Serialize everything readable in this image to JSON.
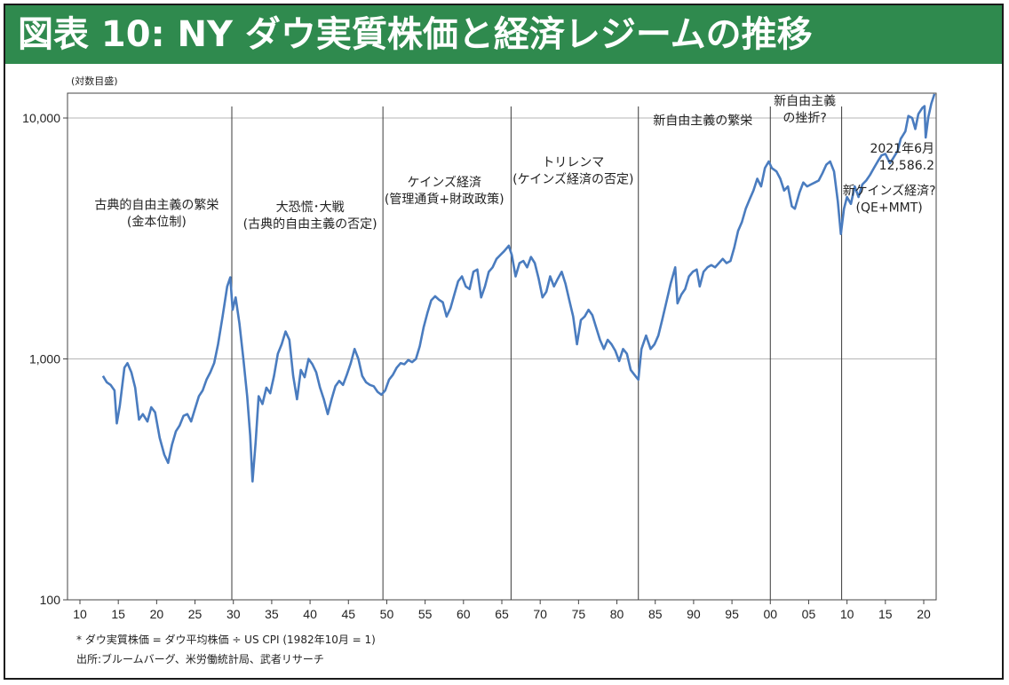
{
  "title": "図表 10: NY ダウ実質株価と経済レジームの推移",
  "unit_label": "(対数目盛)",
  "notes": [
    "*  ダウ実質株価 = ダウ平均株価 ÷ US CPI (1982年10月 = 1)",
    "出所:ブルームバーグ、米労働統計局、武者リサーチ"
  ],
  "chart_data": {
    "type": "line",
    "title": "図表 10: NY ダウ実質株価と経済レジームの推移",
    "ylabel": "(対数目盛)",
    "xlabel": "",
    "y_scale": "log",
    "ylim": [
      100,
      13000
    ],
    "xlim": [
      1910,
      2022
    ],
    "yticks": [
      100,
      1000,
      10000
    ],
    "ytick_labels": [
      "100",
      "1,000",
      "10,000"
    ],
    "xticks": [
      1910,
      1915,
      1920,
      1925,
      1930,
      1935,
      1940,
      1945,
      1950,
      1955,
      1960,
      1965,
      1970,
      1975,
      1980,
      1985,
      1990,
      1995,
      2000,
      2005,
      2010,
      2015,
      2020
    ],
    "xtick_labels": [
      "10",
      "15",
      "20",
      "25",
      "30",
      "35",
      "40",
      "45",
      "50",
      "55",
      "60",
      "65",
      "70",
      "75",
      "80",
      "85",
      "90",
      "95",
      "00",
      "05",
      "10",
      "15",
      "20"
    ],
    "horizontal_gridlines": [
      1000,
      10000
    ],
    "line_color": "#4a7cbf",
    "regime_dividers": [
      1929.8,
      1949.5,
      1966.2,
      1982.8,
      2000.0,
      2009.3
    ],
    "regimes": [
      {
        "x": 1920.0,
        "y": 4200,
        "lines": [
          "古典的自由主義の繁栄",
          "(金本位制)"
        ]
      },
      {
        "x": 1940.0,
        "y": 4100,
        "lines": [
          "大恐慌･大戦",
          "(古典的自由主義の否定)"
        ]
      },
      {
        "x": 1957.5,
        "y": 5200,
        "lines": [
          "ケインズ経済",
          "(管理通貨+財政政策)"
        ]
      },
      {
        "x": 1974.3,
        "y": 6300,
        "lines": [
          "トリレンマ",
          "(ケインズ経済の否定)"
        ]
      },
      {
        "x": 1991.2,
        "y": 9400,
        "lines": [
          "新自由主義の繁栄"
        ]
      },
      {
        "x": 2004.5,
        "y": 11300,
        "lines": [
          "新自由主義",
          "の挫折?"
        ]
      },
      {
        "x": 2015.5,
        "y": 4800,
        "lines": [
          "新ケインズ経済?",
          "(QE+MMT)"
        ]
      }
    ],
    "last_point": {
      "label": [
        "2021年6月",
        "12,586.2"
      ],
      "x": 2021.4,
      "y": 12586.2
    },
    "series": [
      {
        "values": [
          [
            1913.0,
            850
          ],
          [
            1913.5,
            800
          ],
          [
            1914.0,
            780
          ],
          [
            1914.5,
            740
          ],
          [
            1914.8,
            540
          ],
          [
            1915.2,
            640
          ],
          [
            1915.8,
            920
          ],
          [
            1916.2,
            960
          ],
          [
            1916.7,
            880
          ],
          [
            1917.2,
            760
          ],
          [
            1917.7,
            560
          ],
          [
            1918.2,
            590
          ],
          [
            1918.8,
            550
          ],
          [
            1919.3,
            630
          ],
          [
            1919.8,
            600
          ],
          [
            1920.4,
            470
          ],
          [
            1921.0,
            400
          ],
          [
            1921.5,
            370
          ],
          [
            1922.0,
            440
          ],
          [
            1922.5,
            500
          ],
          [
            1923.0,
            530
          ],
          [
            1923.5,
            580
          ],
          [
            1924.0,
            590
          ],
          [
            1924.5,
            550
          ],
          [
            1925.0,
            620
          ],
          [
            1925.5,
            700
          ],
          [
            1926.0,
            740
          ],
          [
            1926.5,
            820
          ],
          [
            1927.0,
            880
          ],
          [
            1927.5,
            960
          ],
          [
            1928.0,
            1150
          ],
          [
            1928.6,
            1500
          ],
          [
            1929.2,
            2000
          ],
          [
            1929.6,
            2180
          ],
          [
            1929.9,
            1600
          ],
          [
            1930.3,
            1800
          ],
          [
            1930.8,
            1400
          ],
          [
            1931.3,
            1000
          ],
          [
            1931.8,
            700
          ],
          [
            1932.2,
            480
          ],
          [
            1932.5,
            310
          ],
          [
            1932.9,
            450
          ],
          [
            1933.3,
            700
          ],
          [
            1933.8,
            650
          ],
          [
            1934.3,
            760
          ],
          [
            1934.8,
            720
          ],
          [
            1935.3,
            850
          ],
          [
            1935.8,
            1050
          ],
          [
            1936.3,
            1150
          ],
          [
            1936.8,
            1300
          ],
          [
            1937.3,
            1200
          ],
          [
            1937.8,
            850
          ],
          [
            1938.3,
            680
          ],
          [
            1938.8,
            900
          ],
          [
            1939.3,
            840
          ],
          [
            1939.8,
            1000
          ],
          [
            1940.3,
            950
          ],
          [
            1940.8,
            880
          ],
          [
            1941.3,
            760
          ],
          [
            1941.8,
            680
          ],
          [
            1942.3,
            590
          ],
          [
            1942.8,
            680
          ],
          [
            1943.3,
            770
          ],
          [
            1943.8,
            810
          ],
          [
            1944.3,
            780
          ],
          [
            1944.8,
            860
          ],
          [
            1945.3,
            960
          ],
          [
            1945.8,
            1100
          ],
          [
            1946.3,
            1000
          ],
          [
            1946.8,
            850
          ],
          [
            1947.3,
            800
          ],
          [
            1947.8,
            780
          ],
          [
            1948.3,
            770
          ],
          [
            1948.8,
            730
          ],
          [
            1949.3,
            710
          ],
          [
            1949.8,
            740
          ],
          [
            1950.3,
            820
          ],
          [
            1950.8,
            860
          ],
          [
            1951.3,
            920
          ],
          [
            1951.8,
            960
          ],
          [
            1952.3,
            950
          ],
          [
            1952.8,
            990
          ],
          [
            1953.3,
            970
          ],
          [
            1953.8,
            1000
          ],
          [
            1954.3,
            1130
          ],
          [
            1954.8,
            1350
          ],
          [
            1955.3,
            1550
          ],
          [
            1955.8,
            1750
          ],
          [
            1956.3,
            1820
          ],
          [
            1956.8,
            1760
          ],
          [
            1957.3,
            1720
          ],
          [
            1957.8,
            1500
          ],
          [
            1958.3,
            1620
          ],
          [
            1958.8,
            1850
          ],
          [
            1959.3,
            2100
          ],
          [
            1959.8,
            2200
          ],
          [
            1960.3,
            2000
          ],
          [
            1960.8,
            1950
          ],
          [
            1961.3,
            2300
          ],
          [
            1961.8,
            2350
          ],
          [
            1962.3,
            1800
          ],
          [
            1962.8,
            2000
          ],
          [
            1963.3,
            2300
          ],
          [
            1963.8,
            2400
          ],
          [
            1964.3,
            2600
          ],
          [
            1964.8,
            2700
          ],
          [
            1965.3,
            2800
          ],
          [
            1965.9,
            2950
          ],
          [
            1966.3,
            2700
          ],
          [
            1966.8,
            2200
          ],
          [
            1967.3,
            2500
          ],
          [
            1967.8,
            2550
          ],
          [
            1968.3,
            2400
          ],
          [
            1968.8,
            2650
          ],
          [
            1969.3,
            2500
          ],
          [
            1969.8,
            2150
          ],
          [
            1970.3,
            1800
          ],
          [
            1970.8,
            1900
          ],
          [
            1971.3,
            2200
          ],
          [
            1971.8,
            2000
          ],
          [
            1972.3,
            2150
          ],
          [
            1972.8,
            2300
          ],
          [
            1973.3,
            2050
          ],
          [
            1973.8,
            1750
          ],
          [
            1974.3,
            1500
          ],
          [
            1974.8,
            1150
          ],
          [
            1975.3,
            1450
          ],
          [
            1975.8,
            1500
          ],
          [
            1976.3,
            1600
          ],
          [
            1976.8,
            1520
          ],
          [
            1977.3,
            1350
          ],
          [
            1977.8,
            1200
          ],
          [
            1978.3,
            1100
          ],
          [
            1978.8,
            1200
          ],
          [
            1979.3,
            1150
          ],
          [
            1979.8,
            1080
          ],
          [
            1980.3,
            980
          ],
          [
            1980.8,
            1100
          ],
          [
            1981.3,
            1050
          ],
          [
            1981.8,
            900
          ],
          [
            1982.4,
            850
          ],
          [
            1982.8,
            820
          ],
          [
            1983.2,
            1100
          ],
          [
            1983.8,
            1250
          ],
          [
            1984.4,
            1100
          ],
          [
            1984.9,
            1150
          ],
          [
            1985.4,
            1250
          ],
          [
            1985.9,
            1450
          ],
          [
            1986.5,
            1750
          ],
          [
            1987.0,
            2050
          ],
          [
            1987.6,
            2400
          ],
          [
            1987.9,
            1700
          ],
          [
            1988.4,
            1850
          ],
          [
            1988.9,
            1950
          ],
          [
            1989.4,
            2200
          ],
          [
            1989.9,
            2300
          ],
          [
            1990.4,
            2350
          ],
          [
            1990.8,
            2000
          ],
          [
            1991.3,
            2300
          ],
          [
            1991.8,
            2400
          ],
          [
            1992.3,
            2450
          ],
          [
            1992.8,
            2400
          ],
          [
            1993.3,
            2500
          ],
          [
            1993.8,
            2600
          ],
          [
            1994.3,
            2500
          ],
          [
            1994.8,
            2550
          ],
          [
            1995.3,
            2900
          ],
          [
            1995.8,
            3400
          ],
          [
            1996.3,
            3700
          ],
          [
            1996.8,
            4200
          ],
          [
            1997.3,
            4600
          ],
          [
            1997.8,
            5000
          ],
          [
            1998.3,
            5600
          ],
          [
            1998.8,
            5200
          ],
          [
            1999.3,
            6200
          ],
          [
            1999.8,
            6600
          ],
          [
            2000.2,
            6200
          ],
          [
            2000.8,
            6000
          ],
          [
            2001.3,
            5600
          ],
          [
            2001.8,
            5000
          ],
          [
            2002.3,
            5200
          ],
          [
            2002.8,
            4300
          ],
          [
            2003.2,
            4200
          ],
          [
            2003.8,
            4900
          ],
          [
            2004.3,
            5400
          ],
          [
            2004.8,
            5200
          ],
          [
            2005.3,
            5300
          ],
          [
            2005.8,
            5400
          ],
          [
            2006.3,
            5500
          ],
          [
            2006.8,
            5900
          ],
          [
            2007.3,
            6400
          ],
          [
            2007.8,
            6600
          ],
          [
            2008.3,
            6000
          ],
          [
            2008.8,
            4500
          ],
          [
            2009.2,
            3300
          ],
          [
            2009.6,
            4200
          ],
          [
            2010.0,
            4700
          ],
          [
            2010.5,
            4400
          ],
          [
            2011.0,
            5200
          ],
          [
            2011.5,
            4700
          ],
          [
            2012.0,
            5300
          ],
          [
            2012.5,
            5500
          ],
          [
            2013.0,
            5800
          ],
          [
            2013.5,
            6200
          ],
          [
            2014.0,
            6600
          ],
          [
            2014.5,
            7000
          ],
          [
            2015.0,
            7100
          ],
          [
            2015.6,
            6500
          ],
          [
            2016.0,
            6800
          ],
          [
            2016.6,
            7300
          ],
          [
            2017.0,
            8200
          ],
          [
            2017.6,
            8800
          ],
          [
            2018.0,
            10200
          ],
          [
            2018.5,
            10000
          ],
          [
            2018.9,
            9000
          ],
          [
            2019.3,
            10400
          ],
          [
            2019.8,
            11000
          ],
          [
            2020.1,
            11200
          ],
          [
            2020.25,
            8300
          ],
          [
            2020.6,
            10100
          ],
          [
            2021.0,
            11500
          ],
          [
            2021.4,
            12586.2
          ]
        ]
      }
    ]
  }
}
